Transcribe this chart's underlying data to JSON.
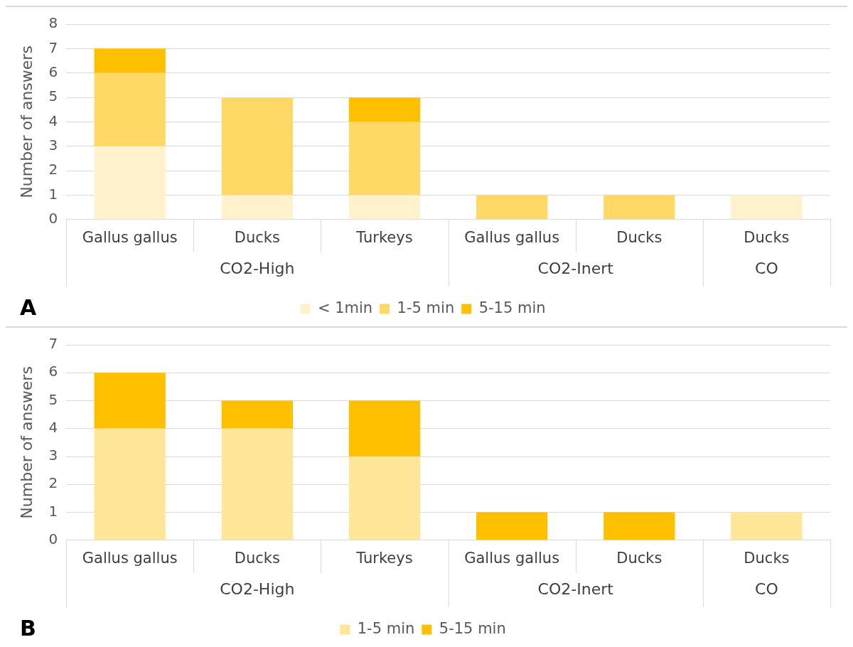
{
  "chart_data": [
    {
      "type": "bar",
      "stacked": true,
      "ylabel": "Number of answers",
      "categories": [
        "Gallus gallus",
        "Ducks",
        "Turkeys",
        "Gallus gallus",
        "Ducks",
        "Ducks"
      ],
      "series": [
        {
          "name": "< 1min",
          "color": "#fff2cc",
          "values": [
            3,
            1,
            1,
            0,
            0,
            1
          ]
        },
        {
          "name": "1-5 min",
          "color": "#ffd966",
          "values": [
            3,
            4,
            3,
            1,
            1,
            0
          ]
        },
        {
          "name": "5-15 min",
          "color": "#ffc000",
          "values": [
            1,
            0,
            1,
            0,
            0,
            0
          ]
        }
      ],
      "ylim": [
        0,
        8
      ],
      "yticks": [
        0,
        1,
        2,
        3,
        4,
        5,
        6,
        7,
        8
      ],
      "grid": "y",
      "legend": "bottom",
      "annotations": [
        "CO2-High",
        "CO2-Inert",
        "CO",
        "A"
      ]
    },
    {
      "type": "bar",
      "stacked": true,
      "ylabel": "Number of answers",
      "categories": [
        "Gallus gallus",
        "Ducks",
        "Turkeys",
        "Gallus gallus",
        "Ducks",
        "Ducks"
      ],
      "series": [
        {
          "name": "1-5 min",
          "color": "#ffe699",
          "values": [
            4,
            4,
            3,
            0,
            0,
            1
          ]
        },
        {
          "name": "5-15 min",
          "color": "#ffc000",
          "values": [
            2,
            1,
            2,
            1,
            1,
            0
          ]
        }
      ],
      "ylim": [
        0,
        7
      ],
      "yticks": [
        0,
        1,
        2,
        3,
        4,
        5,
        6,
        7
      ],
      "grid": "y",
      "legend": "bottom",
      "annotations": [
        "CO2-High",
        "CO2-Inert",
        "CO",
        "B"
      ]
    }
  ]
}
